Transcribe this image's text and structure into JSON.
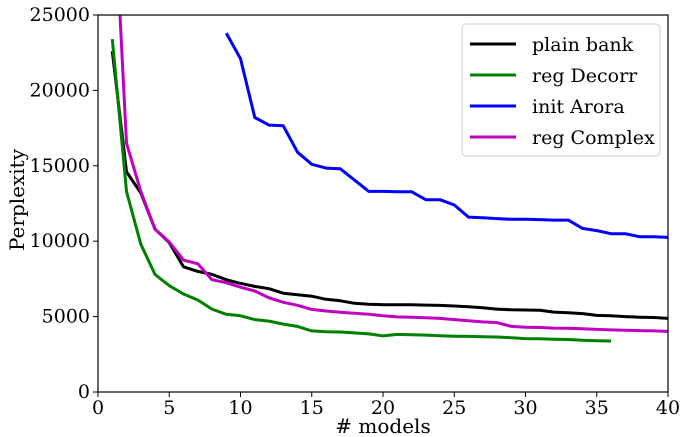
{
  "chart_data": {
    "type": "line",
    "title": "",
    "xlabel": "# models",
    "ylabel": "Perplexity",
    "xlim": [
      0,
      40
    ],
    "ylim": [
      0,
      25000
    ],
    "xticks": [
      0,
      5,
      10,
      15,
      20,
      25,
      30,
      35,
      40
    ],
    "yticks": [
      0,
      5000,
      10000,
      15000,
      20000,
      25000
    ],
    "grid": false,
    "legend_position": "top-right",
    "series": [
      {
        "name": "plain bank",
        "color": "#000000",
        "x": [
          1,
          2,
          3,
          4,
          5,
          6,
          7,
          8,
          9,
          10,
          11,
          12,
          13,
          14,
          15,
          16,
          17,
          18,
          19,
          20,
          21,
          22,
          23,
          24,
          25,
          26,
          27,
          28,
          29,
          30,
          31,
          32,
          33,
          34,
          35,
          36,
          37,
          38,
          39,
          40
        ],
        "y": [
          22600,
          14600,
          13200,
          10800,
          9900,
          8300,
          8000,
          7800,
          7450,
          7200,
          7000,
          6850,
          6550,
          6450,
          6350,
          6150,
          6050,
          5880,
          5820,
          5790,
          5780,
          5780,
          5760,
          5740,
          5700,
          5650,
          5590,
          5500,
          5450,
          5440,
          5420,
          5300,
          5260,
          5200,
          5080,
          5060,
          5000,
          4960,
          4940,
          4880
        ]
      },
      {
        "name": "reg Decorr",
        "color": "#008000",
        "x": [
          1,
          2,
          3,
          4,
          5,
          6,
          7,
          8,
          9,
          10,
          11,
          12,
          13,
          14,
          15,
          16,
          17,
          18,
          19,
          20,
          21,
          22,
          23,
          24,
          25,
          26,
          27,
          28,
          29,
          30,
          31,
          32,
          33,
          34,
          35,
          36
        ],
        "y": [
          23400,
          13300,
          9800,
          7800,
          7050,
          6500,
          6100,
          5500,
          5150,
          5050,
          4800,
          4700,
          4500,
          4350,
          4050,
          4000,
          3980,
          3920,
          3850,
          3720,
          3820,
          3800,
          3770,
          3730,
          3700,
          3690,
          3660,
          3650,
          3600,
          3540,
          3530,
          3500,
          3480,
          3430,
          3400,
          3380
        ]
      },
      {
        "name": "init Arora",
        "color": "#0000ff",
        "x": [
          9,
          10,
          11,
          12,
          13,
          14,
          15,
          16,
          17,
          18,
          19,
          20,
          21,
          22,
          23,
          24,
          25,
          26,
          27,
          28,
          29,
          30,
          31,
          32,
          33,
          34,
          35,
          36,
          37,
          38,
          39,
          40
        ],
        "y": [
          23800,
          22100,
          18200,
          17700,
          17650,
          15900,
          15100,
          14850,
          14800,
          14050,
          13300,
          13300,
          13280,
          13280,
          12750,
          12750,
          12400,
          11600,
          11550,
          11500,
          11450,
          11450,
          11430,
          11400,
          11400,
          10850,
          10700,
          10500,
          10500,
          10300,
          10300,
          10250
        ]
      },
      {
        "name": "reg Complex",
        "color": "#c000c0",
        "x": [
          1,
          2,
          3,
          4,
          5,
          6,
          7,
          8,
          9,
          10,
          11,
          12,
          13,
          14,
          15,
          16,
          17,
          18,
          19,
          20,
          21,
          22,
          23,
          24,
          25,
          26,
          27,
          28,
          29,
          30,
          31,
          32,
          33,
          34,
          35,
          36,
          37,
          38,
          39,
          40
        ],
        "y": [
          35000,
          16500,
          13300,
          10800,
          9950,
          8750,
          8500,
          7450,
          7250,
          6950,
          6700,
          6250,
          5950,
          5750,
          5480,
          5370,
          5290,
          5220,
          5150,
          5050,
          4980,
          4960,
          4920,
          4880,
          4800,
          4720,
          4650,
          4600,
          4350,
          4300,
          4280,
          4240,
          4230,
          4200,
          4150,
          4120,
          4100,
          4070,
          4050,
          4020
        ]
      }
    ]
  }
}
